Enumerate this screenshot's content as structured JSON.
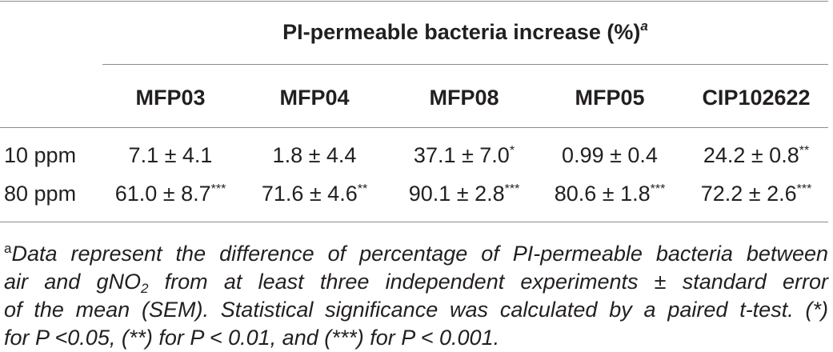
{
  "table": {
    "spanning_header": "PI-permeable bacteria increase (%)",
    "spanning_header_marker": "a",
    "columns": [
      "MFP03",
      "MFP04",
      "MFP08",
      "MFP05",
      "CIP102622"
    ],
    "rows": [
      {
        "label": "10 ppm",
        "cells": [
          {
            "value": "7.1 ± 4.1",
            "sig": ""
          },
          {
            "value": "1.8 ± 4.4",
            "sig": ""
          },
          {
            "value": "37.1 ± 7.0",
            "sig": "*"
          },
          {
            "value": "0.99 ± 0.4",
            "sig": ""
          },
          {
            "value": "24.2 ± 0.8",
            "sig": "**"
          }
        ]
      },
      {
        "label": "80 ppm",
        "cells": [
          {
            "value": "61.0 ± 8.7",
            "sig": "***"
          },
          {
            "value": "71.6 ± 4.6",
            "sig": "**"
          },
          {
            "value": "90.1 ± 2.8",
            "sig": "***"
          },
          {
            "value": "80.6 ± 1.8",
            "sig": "***"
          },
          {
            "value": "72.2 ± 2.6",
            "sig": "***"
          }
        ]
      }
    ]
  },
  "footnote": {
    "marker": "a",
    "line1": "Data represent the difference of percentage of PI-permeable bacteria between",
    "line2_a": "air and gNO",
    "line2_sub": "2",
    "line2_b": " from at least three independent experiments ± standard error",
    "line3": "of the mean (SEM). Statistical significance was calculated by a paired t-test. (*)",
    "line4": "for P <0.05, (**) for P < 0.01, and (***) for P < 0.001."
  }
}
